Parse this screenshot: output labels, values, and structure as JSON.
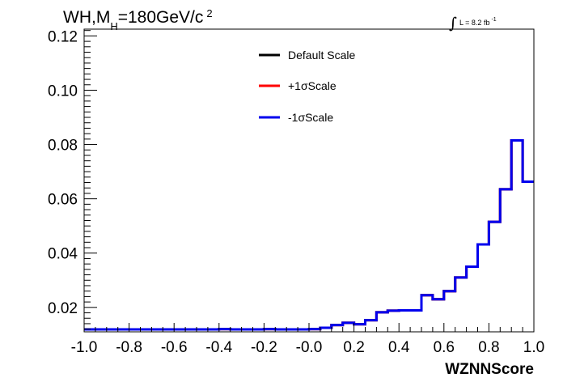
{
  "chart_data": {
    "type": "line",
    "title_parts": {
      "main": "WH,M",
      "sub": "H",
      "value": "=180GeV/c",
      "sup": "2"
    },
    "lumi_label": {
      "symbol": "∫",
      "text": "L = 8.2 fb",
      "sup": "-1"
    },
    "xlabel": "WZNNScore",
    "ylabel": "",
    "xlim": [
      -1.0,
      1.0
    ],
    "ylim": [
      0.011,
      0.1225
    ],
    "x_ticks": [
      -1.0,
      -0.8,
      -0.6,
      -0.4,
      -0.2,
      0.0,
      0.2,
      0.4,
      0.6,
      0.8,
      1.0
    ],
    "x_tick_labels": [
      "-1.0",
      "-0.8",
      "-0.6",
      "-0.4",
      "-0.2",
      "-0.0",
      "0.2",
      "0.4",
      "0.6",
      "0.8",
      "1.0"
    ],
    "y_ticks": [
      0.02,
      0.04,
      0.06,
      0.08,
      0.1,
      0.12
    ],
    "y_tick_labels": [
      "0.02",
      "0.04",
      "0.06",
      "0.08",
      "0.10",
      "0.12"
    ],
    "grid": false,
    "legend_position": "top-center",
    "bin_edges": [
      -1.0,
      -0.95,
      -0.9,
      -0.85,
      -0.8,
      -0.75,
      -0.7,
      -0.65,
      -0.6,
      -0.55,
      -0.5,
      -0.45,
      -0.4,
      -0.35,
      -0.3,
      -0.25,
      -0.2,
      -0.15,
      -0.1,
      -0.05,
      0.0,
      0.05,
      0.1,
      0.15,
      0.2,
      0.25,
      0.3,
      0.35,
      0.4,
      0.45,
      0.5,
      0.55,
      0.6,
      0.65,
      0.7,
      0.75,
      0.8,
      0.85,
      0.9,
      0.95,
      1.0
    ],
    "series": [
      {
        "name": "Default Scale",
        "color": "#000000",
        "values": [
          0.0119,
          0.0119,
          0.0119,
          0.0119,
          0.0119,
          0.0119,
          0.0119,
          0.0119,
          0.0119,
          0.0119,
          0.0119,
          0.0119,
          0.012,
          0.0119,
          0.0119,
          0.0119,
          0.012,
          0.0119,
          0.0119,
          0.0119,
          0.012,
          0.0125,
          0.0135,
          0.0143,
          0.0138,
          0.0153,
          0.0182,
          0.0188,
          0.0189,
          0.0189,
          0.0245,
          0.023,
          0.026,
          0.031,
          0.035,
          0.0432,
          0.0515,
          0.0635,
          0.0815,
          0.0663
        ]
      },
      {
        "name": "+1σScale",
        "color": "#ff0000",
        "values": [
          0.0119,
          0.0119,
          0.0119,
          0.0119,
          0.0119,
          0.0119,
          0.0119,
          0.0119,
          0.0119,
          0.0119,
          0.0119,
          0.0119,
          0.012,
          0.0119,
          0.0119,
          0.0119,
          0.012,
          0.0119,
          0.0119,
          0.0119,
          0.012,
          0.0125,
          0.0135,
          0.0143,
          0.0138,
          0.0153,
          0.0182,
          0.0188,
          0.0189,
          0.0189,
          0.0245,
          0.023,
          0.026,
          0.031,
          0.035,
          0.0432,
          0.0515,
          0.0635,
          0.0815,
          0.0663
        ]
      },
      {
        "name": "-1σScale",
        "color": "#0000ee",
        "values": [
          0.0119,
          0.0119,
          0.0119,
          0.0119,
          0.0119,
          0.0119,
          0.0119,
          0.0119,
          0.0119,
          0.0119,
          0.0119,
          0.0119,
          0.012,
          0.0119,
          0.0119,
          0.0119,
          0.012,
          0.0119,
          0.0119,
          0.0119,
          0.012,
          0.0125,
          0.0135,
          0.0143,
          0.0138,
          0.0153,
          0.0182,
          0.0188,
          0.0189,
          0.0189,
          0.0245,
          0.023,
          0.026,
          0.031,
          0.035,
          0.0432,
          0.0515,
          0.0635,
          0.0815,
          0.0663
        ]
      }
    ]
  }
}
